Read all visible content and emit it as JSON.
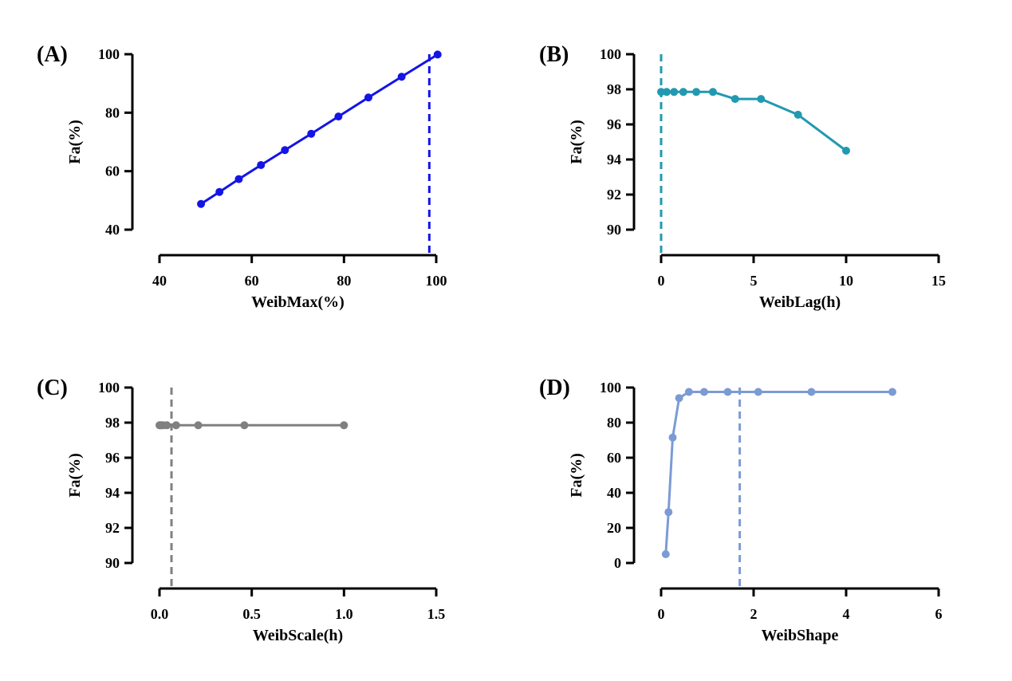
{
  "chart_data": [
    {
      "type": "line",
      "panel_label": "(A)",
      "xlabel": "WeibMax(%)",
      "ylabel": "Fa(%)",
      "color": "#1414e6",
      "xlim": [
        40,
        100
      ],
      "ylim": [
        40,
        100
      ],
      "xticks": [
        40,
        60,
        80,
        100
      ],
      "yticks": [
        40,
        60,
        80,
        100
      ],
      "x": [
        49,
        53,
        57.2,
        62,
        67.2,
        72.9,
        78.8,
        85.3,
        92.5,
        100.3
      ],
      "y": [
        48.8,
        52.9,
        57.3,
        62.1,
        67.2,
        72.8,
        78.7,
        85.2,
        92.3,
        99.9
      ],
      "reference_x": 98.5
    },
    {
      "type": "line",
      "panel_label": "(B)",
      "xlabel": "WeibLag(h)",
      "ylabel": "Fa(%)",
      "color": "#2299b0",
      "xlim": [
        0,
        15
      ],
      "ylim": [
        90,
        100
      ],
      "xticks": [
        0,
        5,
        10,
        15
      ],
      "yticks": [
        90,
        92,
        94,
        96,
        98,
        100
      ],
      "x": [
        0,
        0.3,
        0.7,
        1.2,
        1.9,
        2.8,
        4.0,
        5.4,
        7.4,
        10.0
      ],
      "y": [
        97.85,
        97.85,
        97.85,
        97.85,
        97.85,
        97.85,
        97.45,
        97.45,
        96.55,
        94.5
      ],
      "reference_x": 0
    },
    {
      "type": "line",
      "panel_label": "(C)",
      "xlabel": "WeibScale(h)",
      "ylabel": "Fa(%)",
      "color": "#808080",
      "xlim": [
        0,
        1.5
      ],
      "ylim": [
        90,
        100
      ],
      "xticks": [
        0,
        0.5,
        1,
        1.5
      ],
      "xticklabels": [
        "0.0",
        "0.5",
        "1.0",
        "1.5"
      ],
      "yticks": [
        90,
        92,
        94,
        96,
        98,
        100
      ],
      "x": [
        0,
        0.005,
        0.01,
        0.02,
        0.04,
        0.09,
        0.21,
        0.46,
        1.0
      ],
      "y": [
        97.85,
        97.85,
        97.85,
        97.85,
        97.85,
        97.85,
        97.85,
        97.85,
        97.85
      ],
      "reference_x": 0.065
    },
    {
      "type": "line",
      "panel_label": "(D)",
      "xlabel": "WeibShape",
      "ylabel": "Fa(%)",
      "color": "#7b9bd4",
      "xlim": [
        0,
        6
      ],
      "ylim": [
        0,
        100
      ],
      "xticks": [
        0,
        2,
        4,
        6
      ],
      "yticks": [
        0,
        20,
        40,
        60,
        80,
        100
      ],
      "x": [
        0.1,
        0.16,
        0.25,
        0.39,
        0.6,
        0.93,
        1.44,
        2.1,
        3.25,
        5.0
      ],
      "y": [
        5,
        29,
        71.5,
        94,
        97.5,
        97.5,
        97.5,
        97.5,
        97.5,
        97.5
      ],
      "reference_x": 1.7
    }
  ]
}
